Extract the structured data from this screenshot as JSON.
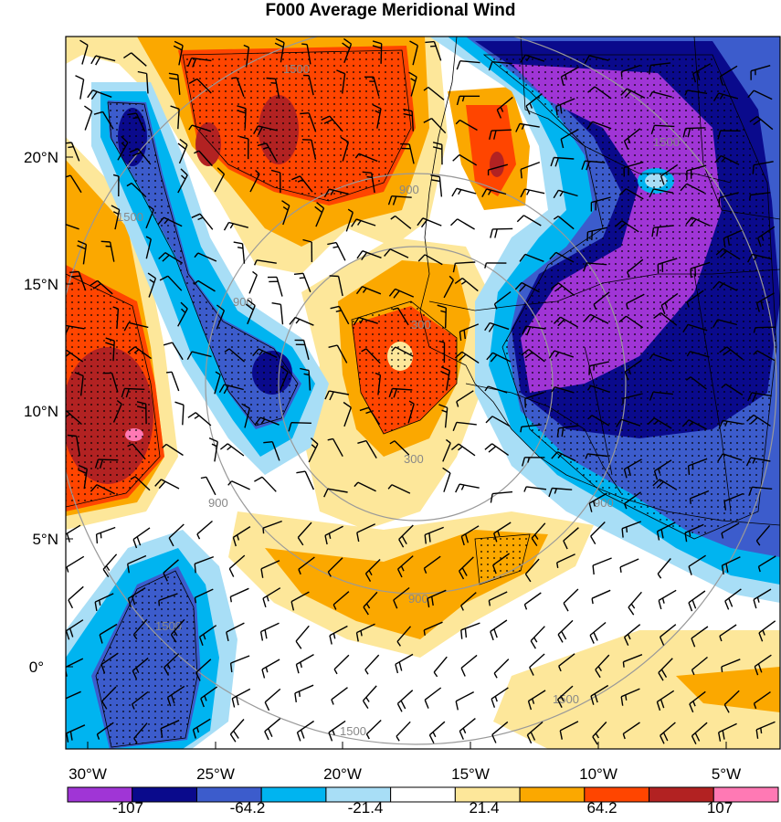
{
  "title": "F000 Average Meridional Wind",
  "map": {
    "lat_ticks": [
      "20°N",
      "15°N",
      "10°N",
      "5°N",
      "0°"
    ],
    "lon_ticks": [
      "30°W",
      "25°W",
      "20°W",
      "15°W",
      "10°W",
      "5°W"
    ],
    "range_rings": [
      "300",
      "900",
      "1500"
    ]
  },
  "colorbar": {
    "colors": [
      "#a035d6",
      "#0a0a8c",
      "#3c5ccc",
      "#00b4f0",
      "#a8def6",
      "#ffffff",
      "#fde79a",
      "#fba800",
      "#ff4500",
      "#b22222",
      "#ff79b4"
    ],
    "labels": [
      "-107",
      "-64.2",
      "-21.4",
      "21.4",
      "64.2",
      "107"
    ]
  }
}
